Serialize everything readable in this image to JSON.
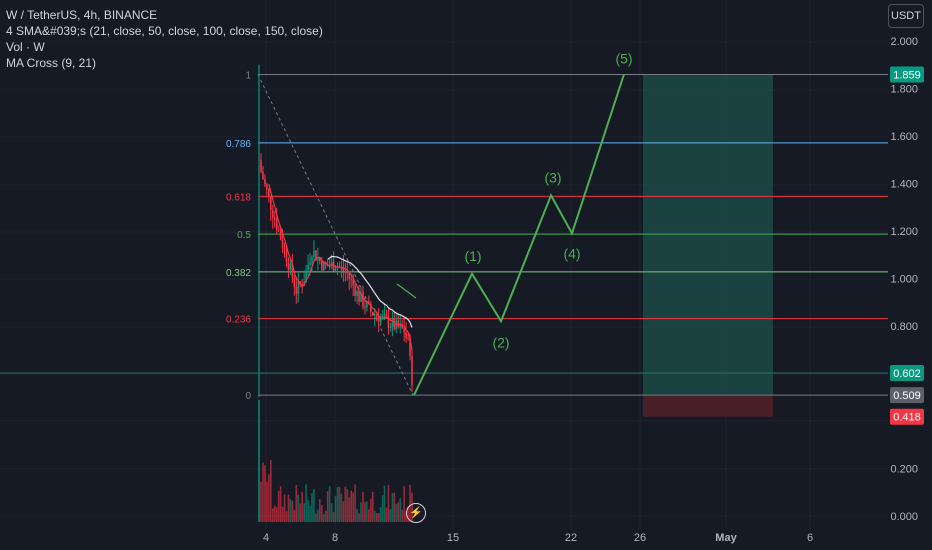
{
  "legend": {
    "line1": "W / TetherUS, 4h, BINANCE",
    "line2": "4 SMA&#039;s (21, close, 50, close, 100, close, 150, close)",
    "line3": "Vol · W",
    "line4": "MA Cross (9, 21)"
  },
  "currency_button": "USDT",
  "bolt_icon": "⚡",
  "chart_data": {
    "type": "line",
    "y_axis": {
      "ticks": [
        "2.000",
        "1.800",
        "1.600",
        "1.400",
        "1.200",
        "1.000",
        "0.800",
        "0.200",
        "0.000"
      ],
      "tick_values": [
        2.0,
        1.8,
        1.6,
        1.4,
        1.2,
        1.0,
        0.8,
        0.2,
        0.0
      ]
    },
    "x_axis": {
      "ticks": [
        "4",
        "8",
        "15",
        "22",
        "26",
        "May",
        "6"
      ]
    },
    "price_labels": [
      {
        "text": "1.859",
        "value": 1.859,
        "color": "#089981"
      },
      {
        "text": "0.602",
        "value": 0.602,
        "color": "#089981"
      },
      {
        "text": "0.509",
        "value": 0.509,
        "color": "#5d606b"
      },
      {
        "text": "0.418",
        "value": 0.418,
        "color": "#f23645"
      }
    ],
    "fib_levels": [
      {
        "label": "1",
        "value": 1.859,
        "color": "#787b86"
      },
      {
        "label": "0.786",
        "value": 1.571,
        "color": "#64b5f6"
      },
      {
        "label": "0.618",
        "value": 1.346,
        "color": "#f23645"
      },
      {
        "label": "0.5",
        "value": 1.187,
        "color": "#4caf50"
      },
      {
        "label": "0.382",
        "value": 1.028,
        "color": "#81c784"
      },
      {
        "label": "0.236",
        "value": 0.831,
        "color": "#f23645"
      },
      {
        "label": "0",
        "value": 0.509,
        "color": "#787b86"
      }
    ],
    "wave_labels": [
      "(1)",
      "(2)",
      "(3)",
      "(4)",
      "(5)"
    ],
    "wave_path": [
      {
        "x": "Apr 12",
        "y": 0.509
      },
      {
        "x": "Apr 16",
        "y": 1.02
      },
      {
        "x": "Apr 18",
        "y": 0.82
      },
      {
        "x": "Apr 21",
        "y": 1.35
      },
      {
        "x": "Apr 22",
        "y": 1.19
      },
      {
        "x": "Apr 25",
        "y": 1.86
      }
    ],
    "wave_color": "#4caf50",
    "profit_color": "#1b4a46",
    "loss_color": "#4a2025",
    "candle_up_color": "#089981",
    "candle_down_color": "#f23645"
  }
}
